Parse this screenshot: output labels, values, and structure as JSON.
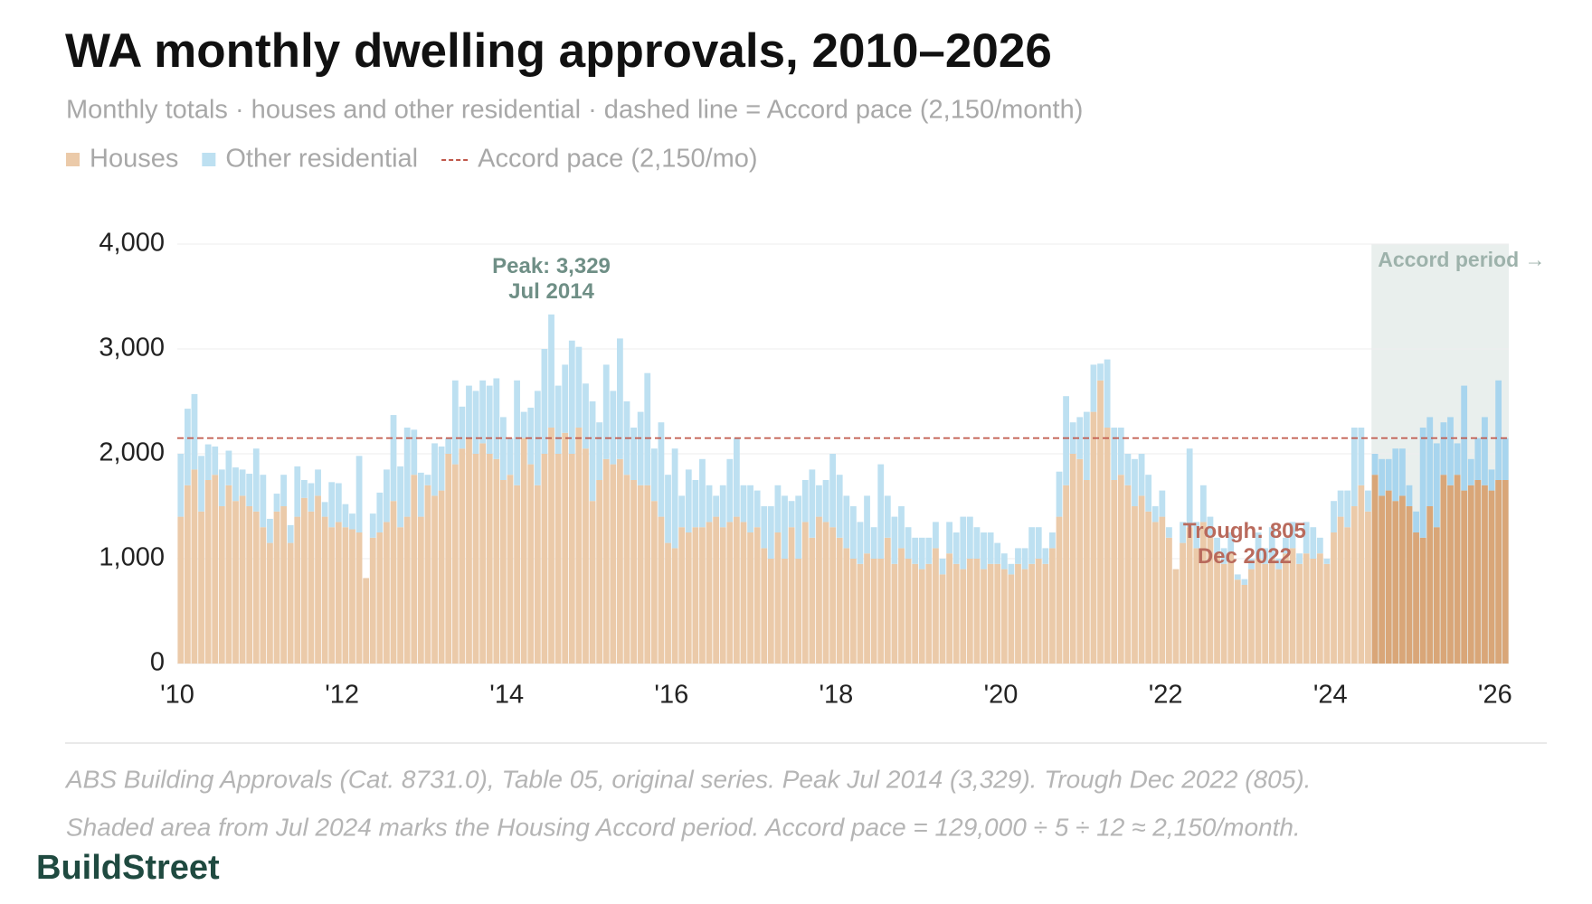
{
  "title": "WA monthly dwelling approvals, 2010–2026",
  "subtitle": "Monthly totals · houses and other residential · dashed line = Accord pace (2,150/month)",
  "chart_data": {
    "type": "bar",
    "stacked": true,
    "categories": [
      "'10",
      null,
      null,
      null,
      null,
      null,
      null,
      null,
      null,
      null,
      null,
      null,
      null,
      null,
      null,
      null,
      null,
      null,
      null,
      null,
      null,
      null,
      null,
      null,
      "'12",
      null,
      null,
      null,
      null,
      null,
      null,
      null,
      null,
      null,
      null,
      null,
      null,
      null,
      null,
      null,
      null,
      null,
      null,
      null,
      null,
      null,
      null,
      null,
      "'14",
      null,
      null,
      null,
      null,
      null,
      null,
      null,
      null,
      null,
      null,
      null,
      null,
      null,
      null,
      null,
      null,
      null,
      null,
      null,
      null,
      null,
      null,
      null,
      "'16",
      null,
      null,
      null,
      null,
      null,
      null,
      null,
      null,
      null,
      null,
      null,
      null,
      null,
      null,
      null,
      null,
      null,
      null,
      null,
      null,
      null,
      null,
      null,
      "'18",
      null,
      null,
      null,
      null,
      null,
      null,
      null,
      null,
      null,
      null,
      null,
      null,
      null,
      null,
      null,
      null,
      null,
      null,
      null,
      null,
      null,
      null,
      null,
      "'20",
      null,
      null,
      null,
      null,
      null,
      null,
      null,
      null,
      null,
      null,
      null,
      null,
      null,
      null,
      null,
      null,
      null,
      null,
      null,
      null,
      null,
      null,
      null,
      "'22",
      null,
      null,
      null,
      null,
      null,
      null,
      null,
      null,
      null,
      null,
      null,
      null,
      null,
      null,
      null,
      null,
      null,
      null,
      null,
      null,
      null,
      null,
      null,
      "'24",
      null,
      null,
      null,
      null,
      null,
      null,
      null,
      null,
      null,
      null,
      null,
      null,
      null,
      null,
      null,
      null,
      null,
      null,
      null,
      null,
      null,
      null,
      null,
      "'26",
      null
    ],
    "series": [
      {
        "name": "Houses",
        "color": "#ebcaa9",
        "highlight_color": "#d9a678",
        "values": [
          1400,
          1700,
          1850,
          1450,
          1750,
          1800,
          1500,
          1700,
          1550,
          1600,
          1500,
          1450,
          1300,
          1150,
          1450,
          1500,
          1150,
          1400,
          1580,
          1450,
          1600,
          1400,
          1300,
          1350,
          1300,
          1280,
          1250,
          815,
          1200,
          1250,
          1350,
          1550,
          1300,
          1400,
          1800,
          1400,
          1700,
          1600,
          1650,
          2000,
          1900,
          2050,
          2150,
          2000,
          2100,
          2000,
          1950,
          1750,
          1800,
          1700,
          2150,
          1900,
          1700,
          2000,
          2250,
          2000,
          2200,
          2000,
          2250,
          2050,
          1550,
          1750,
          1950,
          1900,
          1950,
          1800,
          1750,
          1700,
          1700,
          1550,
          1400,
          1150,
          1100,
          1300,
          1250,
          1300,
          1300,
          1350,
          1400,
          1300,
          1350,
          1400,
          1350,
          1250,
          1300,
          1100,
          1000,
          1250,
          1000,
          1300,
          1000,
          1350,
          1200,
          1400,
          1350,
          1300,
          1200,
          1100,
          1000,
          950,
          1050,
          1000,
          1000,
          1200,
          950,
          1100,
          1000,
          950,
          900,
          950,
          1100,
          850,
          1050,
          950,
          900,
          1000,
          1000,
          900,
          950,
          950,
          900,
          850,
          950,
          900,
          950,
          1000,
          950,
          1100,
          1400,
          1700,
          2000,
          1950,
          1750,
          2400,
          2700,
          2250,
          1750,
          1800,
          1700,
          1500,
          1600,
          1450,
          1350,
          1400,
          1200,
          900,
          1150,
          1300,
          1100,
          1350,
          1200,
          1050,
          950,
          1050,
          800,
          750,
          900,
          1000,
          950,
          1000,
          900,
          1050,
          1100,
          950,
          1050,
          1000,
          1050,
          950,
          1250,
          1400,
          1300,
          1500,
          1700,
          1450,
          1800,
          1600,
          1650,
          1550,
          1600,
          1500,
          1250,
          1200,
          1500,
          1300,
          1800,
          1700,
          1800,
          1650,
          1700,
          1750,
          1700,
          1650,
          1750,
          1750
        ]
      },
      {
        "name": "Other residential",
        "color": "#bde0f1",
        "highlight_color": "#a8d5ee",
        "values": [
          600,
          730,
          720,
          530,
          340,
          270,
          350,
          330,
          320,
          250,
          310,
          600,
          500,
          230,
          170,
          300,
          170,
          480,
          170,
          270,
          250,
          140,
          430,
          370,
          220,
          150,
          730,
          0,
          230,
          380,
          500,
          820,
          580,
          850,
          430,
          420,
          100,
          500,
          420,
          150,
          800,
          400,
          500,
          600,
          600,
          650,
          770,
          600,
          350,
          1000,
          250,
          540,
          900,
          1000,
          1079,
          650,
          650,
          1080,
          770,
          620,
          950,
          550,
          900,
          700,
          1150,
          700,
          500,
          700,
          1070,
          500,
          900,
          650,
          950,
          300,
          600,
          450,
          650,
          350,
          200,
          400,
          600,
          750,
          350,
          450,
          350,
          400,
          500,
          450,
          600,
          250,
          600,
          400,
          650,
          300,
          400,
          700,
          600,
          500,
          500,
          400,
          550,
          300,
          900,
          400,
          450,
          400,
          300,
          250,
          300,
          250,
          250,
          150,
          300,
          300,
          500,
          400,
          300,
          350,
          300,
          200,
          150,
          100,
          150,
          200,
          350,
          300,
          150,
          150,
          430,
          850,
          300,
          400,
          650,
          450,
          160,
          650,
          500,
          450,
          300,
          450,
          400,
          350,
          150,
          250,
          100,
          0,
          200,
          750,
          250,
          350,
          200,
          150,
          150,
          200,
          50,
          55,
          100,
          250,
          150,
          300,
          100,
          150,
          250,
          100,
          300,
          300,
          150,
          50,
          300,
          250,
          350,
          750,
          550,
          200,
          200,
          350,
          300,
          500,
          450,
          200,
          200,
          1050,
          850,
          800,
          500,
          650,
          300,
          1000,
          250,
          400,
          650,
          200,
          950,
          400
        ]
      }
    ],
    "ylim": [
      0,
      4000
    ],
    "yticks": [
      0,
      {
        "value": 1000,
        "label": "1,000"
      },
      {
        "value": 2000,
        "label": "2,000"
      },
      {
        "value": 3000,
        "label": "3,000"
      },
      {
        "value": 4000,
        "label": "4,000"
      }
    ],
    "grid": true,
    "reference_line": {
      "value": 2150,
      "label": "Accord pace (2,150/mo)",
      "color": "#c0584a"
    },
    "shaded_period": {
      "label": "Accord period →",
      "from": "Jul 2024",
      "color": "#e9efed",
      "label_color": "#9db2ab"
    },
    "annotations": [
      {
        "text": "Peak: 3,329",
        "date": "Jul 2014",
        "at": "max",
        "color": "#6f8f86"
      },
      {
        "text": "Trough: 805",
        "date": "Dec 2022",
        "at": "min",
        "color": "#b96a5c"
      }
    ]
  },
  "footnote": [
    "ABS Building Approvals (Cat. 8731.0), Table 05, original series. Peak Jul 2014 (3,329). Trough Dec 2022 (805).",
    "Shaded area from Jul 2024 marks the Housing Accord period. Accord pace = 129,000 ÷ 5 ÷ 12 ≈ 2,150/month."
  ],
  "brand": "BuildStreet"
}
